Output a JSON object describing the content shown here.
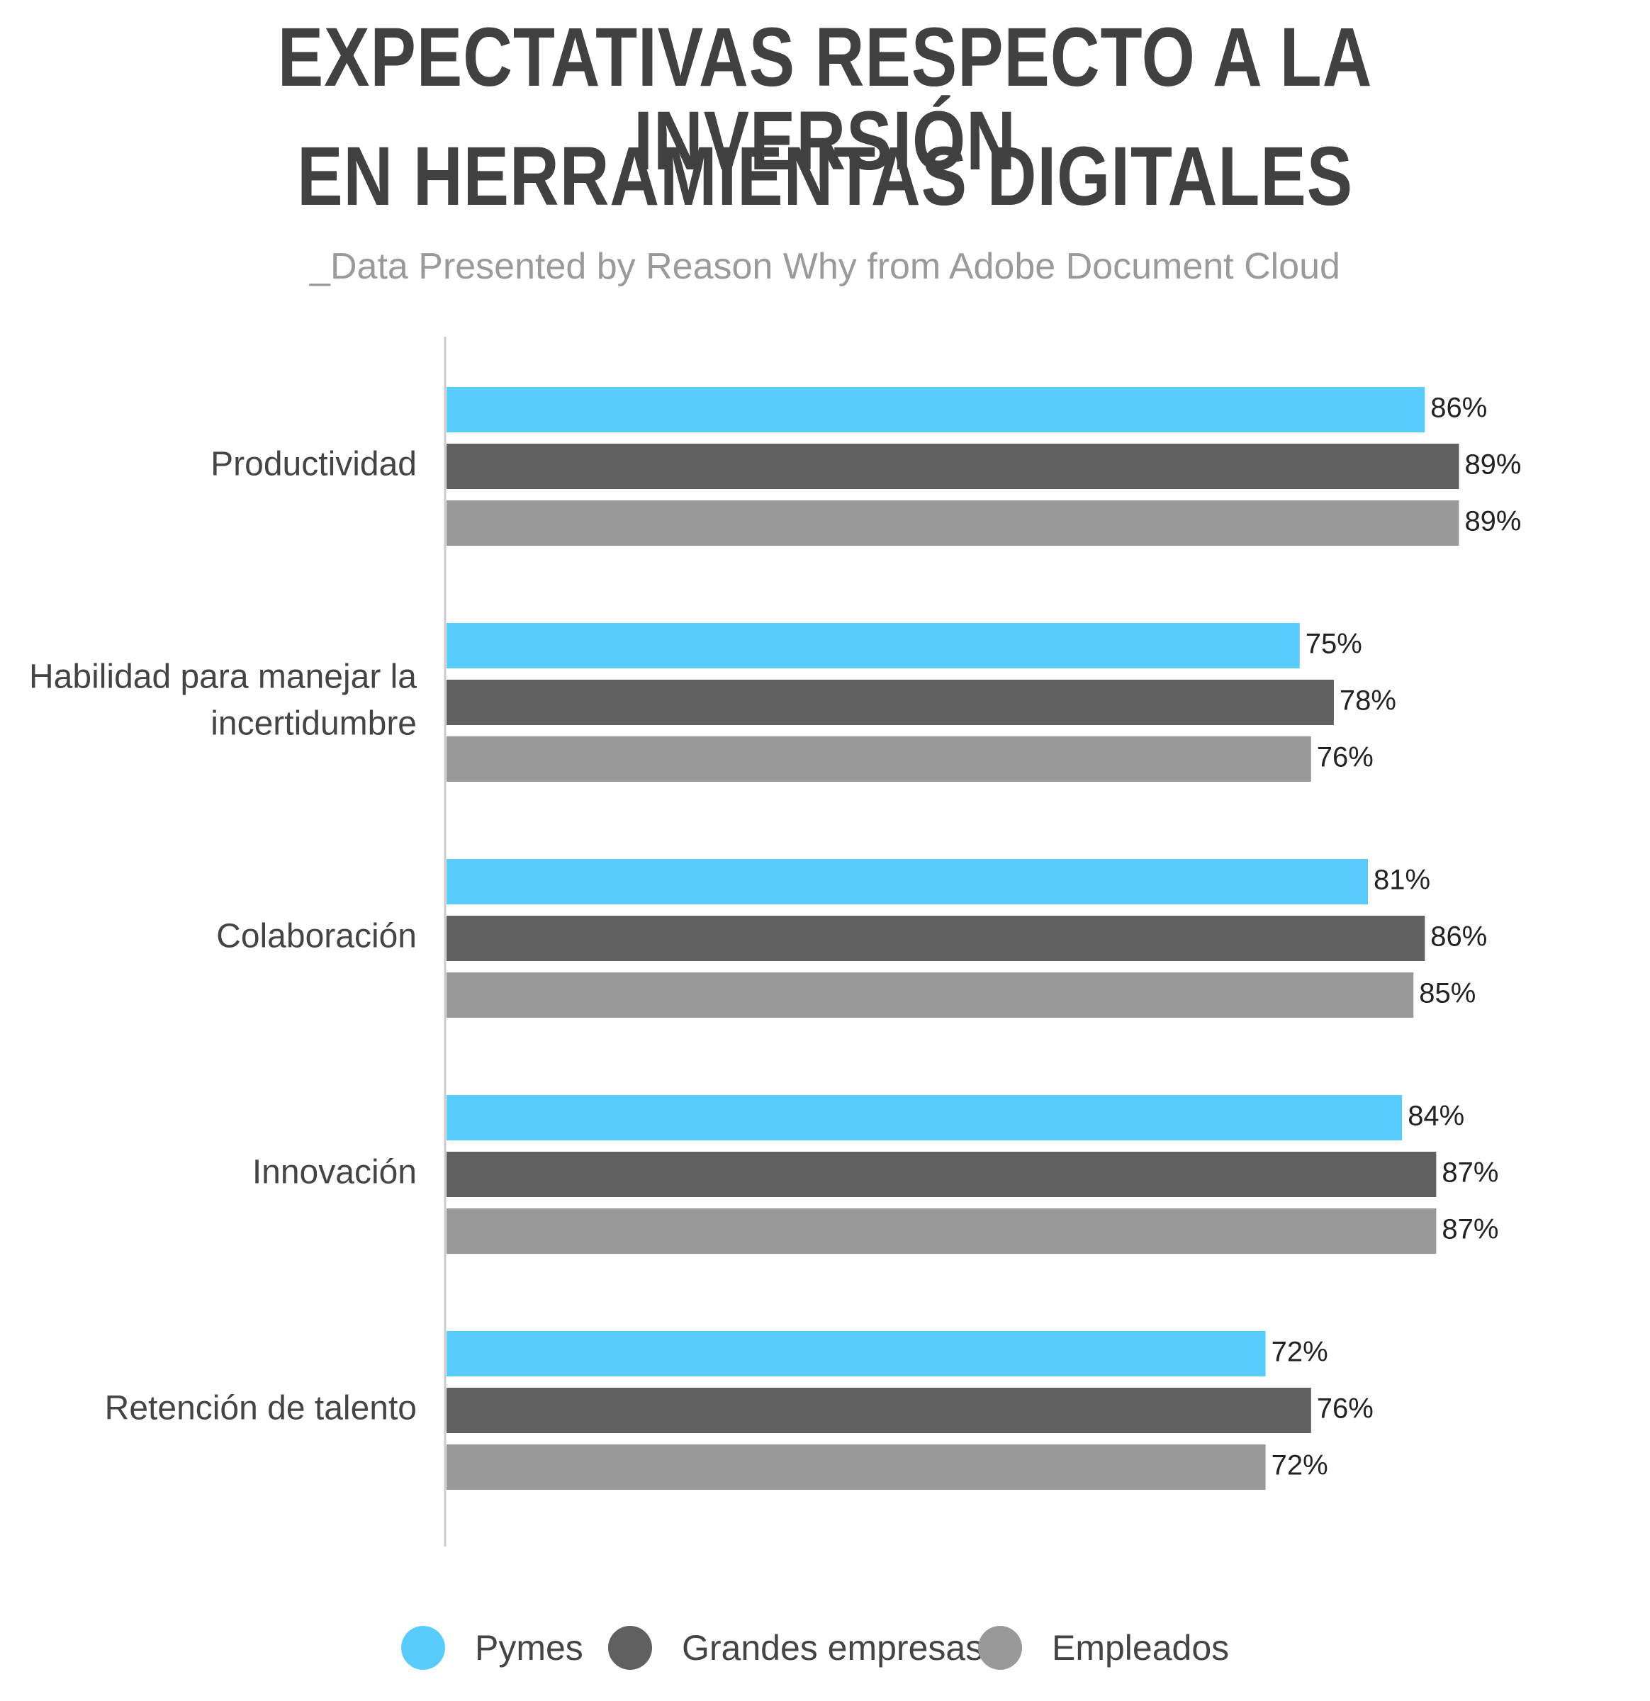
{
  "header": {
    "title_line1": "EXPECTATIVAS RESPECTO A LA INVERSIÓN",
    "title_line2": "EN HERRAMIENTAS DIGITALES",
    "subtitle": "_Data Presented by Reason Why from Adobe Document Cloud"
  },
  "chart_data": {
    "type": "bar",
    "orientation": "horizontal",
    "title": "EXPECTATIVAS RESPECTO A LA INVERSIÓN EN HERRAMIENTAS DIGITALES",
    "subtitle": "_Data Presented by Reason Why from Adobe Document Cloud",
    "categories": [
      "Productividad",
      "Habilidad para manejar la incertidumbre",
      "Colaboración",
      "Innovación",
      "Retención de talento"
    ],
    "category_lines": [
      [
        "Productividad"
      ],
      [
        "Habilidad para manejar la",
        "incertidumbre"
      ],
      [
        "Colaboración"
      ],
      [
        "Innovación"
      ],
      [
        "Retención de talento"
      ]
    ],
    "series": [
      {
        "name": "Pymes",
        "color": "#59CBFC",
        "values": [
          86,
          75,
          81,
          84,
          72
        ]
      },
      {
        "name": "Grandes empresas",
        "color": "#606060",
        "values": [
          89,
          78,
          86,
          87,
          76
        ]
      },
      {
        "name": "Empleados",
        "color": "#999999",
        "values": [
          89,
          76,
          85,
          87,
          72
        ]
      }
    ],
    "value_suffix": "%",
    "xlim": [
      0,
      100
    ],
    "grid": false,
    "legend_position": "bottom"
  }
}
